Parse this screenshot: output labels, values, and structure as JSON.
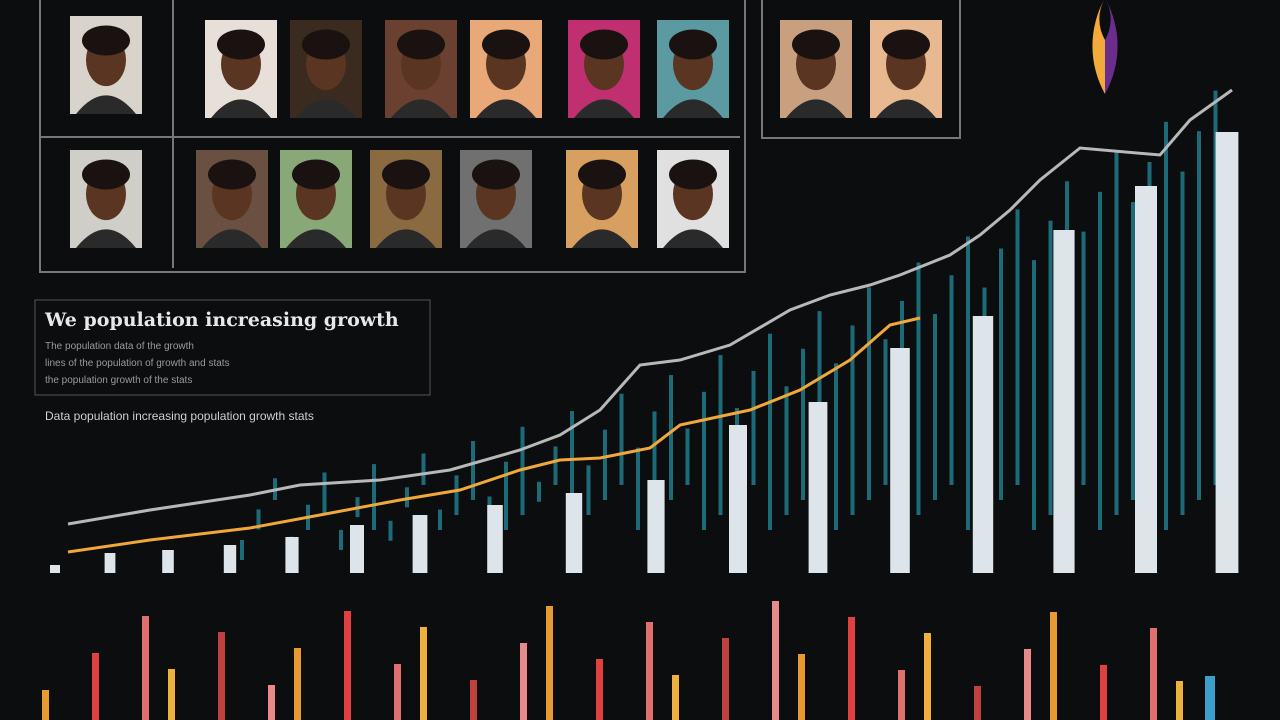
{
  "header": {
    "title": "We population increasing growth",
    "lines": [
      "The population data of the growth",
      "lines of the population of growth and stats",
      "the population growth of the stats"
    ],
    "caption": "Data population increasing population growth stats"
  }
}
